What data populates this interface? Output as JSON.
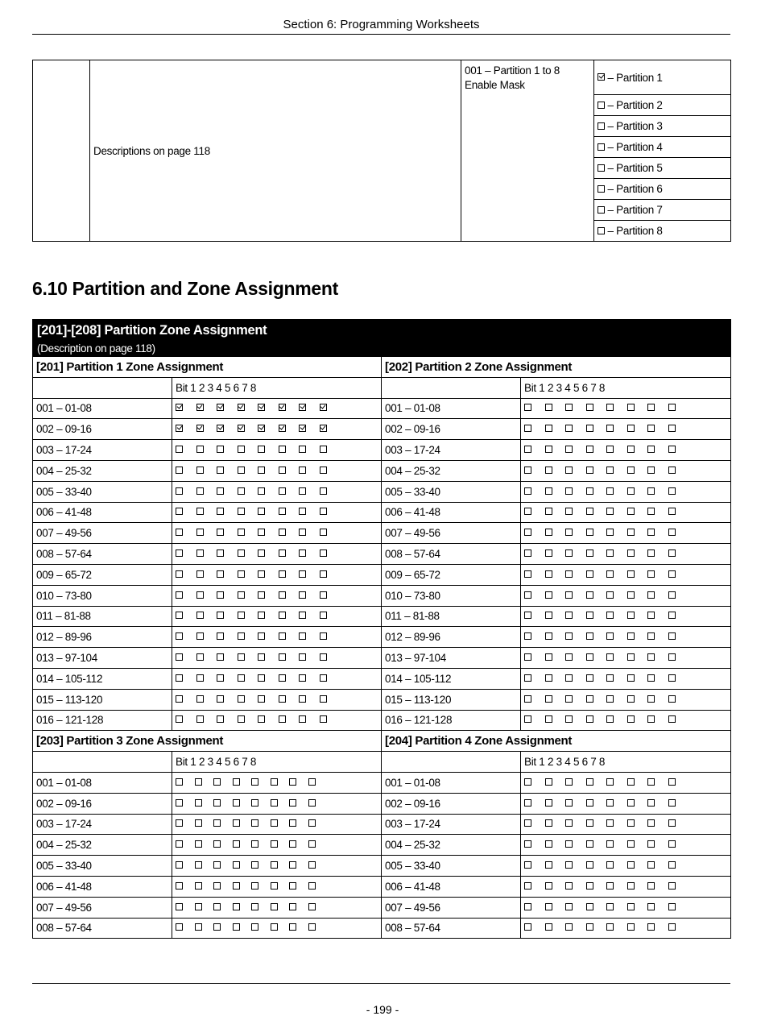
{
  "header": {
    "title": "Section 6: Programming Worksheets"
  },
  "top_table": {
    "description": "Descriptions on page 118",
    "field": "001 – Partition 1 to 8 Enable Mask",
    "options": [
      {
        "label": "– Partition 1",
        "checked": true
      },
      {
        "label": "– Partition 2",
        "checked": false
      },
      {
        "label": "– Partition 3",
        "checked": false
      },
      {
        "label": "– Partition 4",
        "checked": false
      },
      {
        "label": "– Partition 5",
        "checked": false
      },
      {
        "label": "– Partition 6",
        "checked": false
      },
      {
        "label": "– Partition 7",
        "checked": false
      },
      {
        "label": "– Partition 8",
        "checked": false
      }
    ]
  },
  "section_heading": "6.10 Partition and Zone Assignment",
  "zone_table": {
    "title": "[201]-[208] Partition Zone Assignment",
    "subtitle": "(Description on page 118)",
    "bit_header": "Bit 1 2 3 4 5 6 7 8",
    "groups": [
      {
        "left": {
          "title": "[201] Partition 1 Zone Assignment",
          "checked_rows": [
            0,
            1
          ]
        },
        "right": {
          "title": "[202] Partition 2 Zone Assignment",
          "checked_rows": []
        },
        "rows": [
          "001 – 01-08",
          "002 – 09-16",
          "003 – 17-24",
          "004 – 25-32",
          "005 – 33-40",
          "006 – 41-48",
          "007 – 49-56",
          "008 – 57-64",
          "009 – 65-72",
          "010 – 73-80",
          "011 – 81-88",
          "012 – 89-96",
          "013 – 97-104",
          "014 – 105-112",
          "015 – 113-120",
          "016 – 121-128"
        ]
      },
      {
        "left": {
          "title": "[203] Partition 3 Zone Assignment",
          "checked_rows": []
        },
        "right": {
          "title": "[204] Partition 4 Zone Assignment",
          "checked_rows": []
        },
        "rows": [
          "001 – 01-08",
          "002 – 09-16",
          "003 – 17-24",
          "004 – 25-32",
          "005 – 33-40",
          "006 – 41-48",
          "007 – 49-56",
          "008 – 57-64"
        ]
      }
    ]
  },
  "footer": {
    "page_number": "- 199 -"
  }
}
